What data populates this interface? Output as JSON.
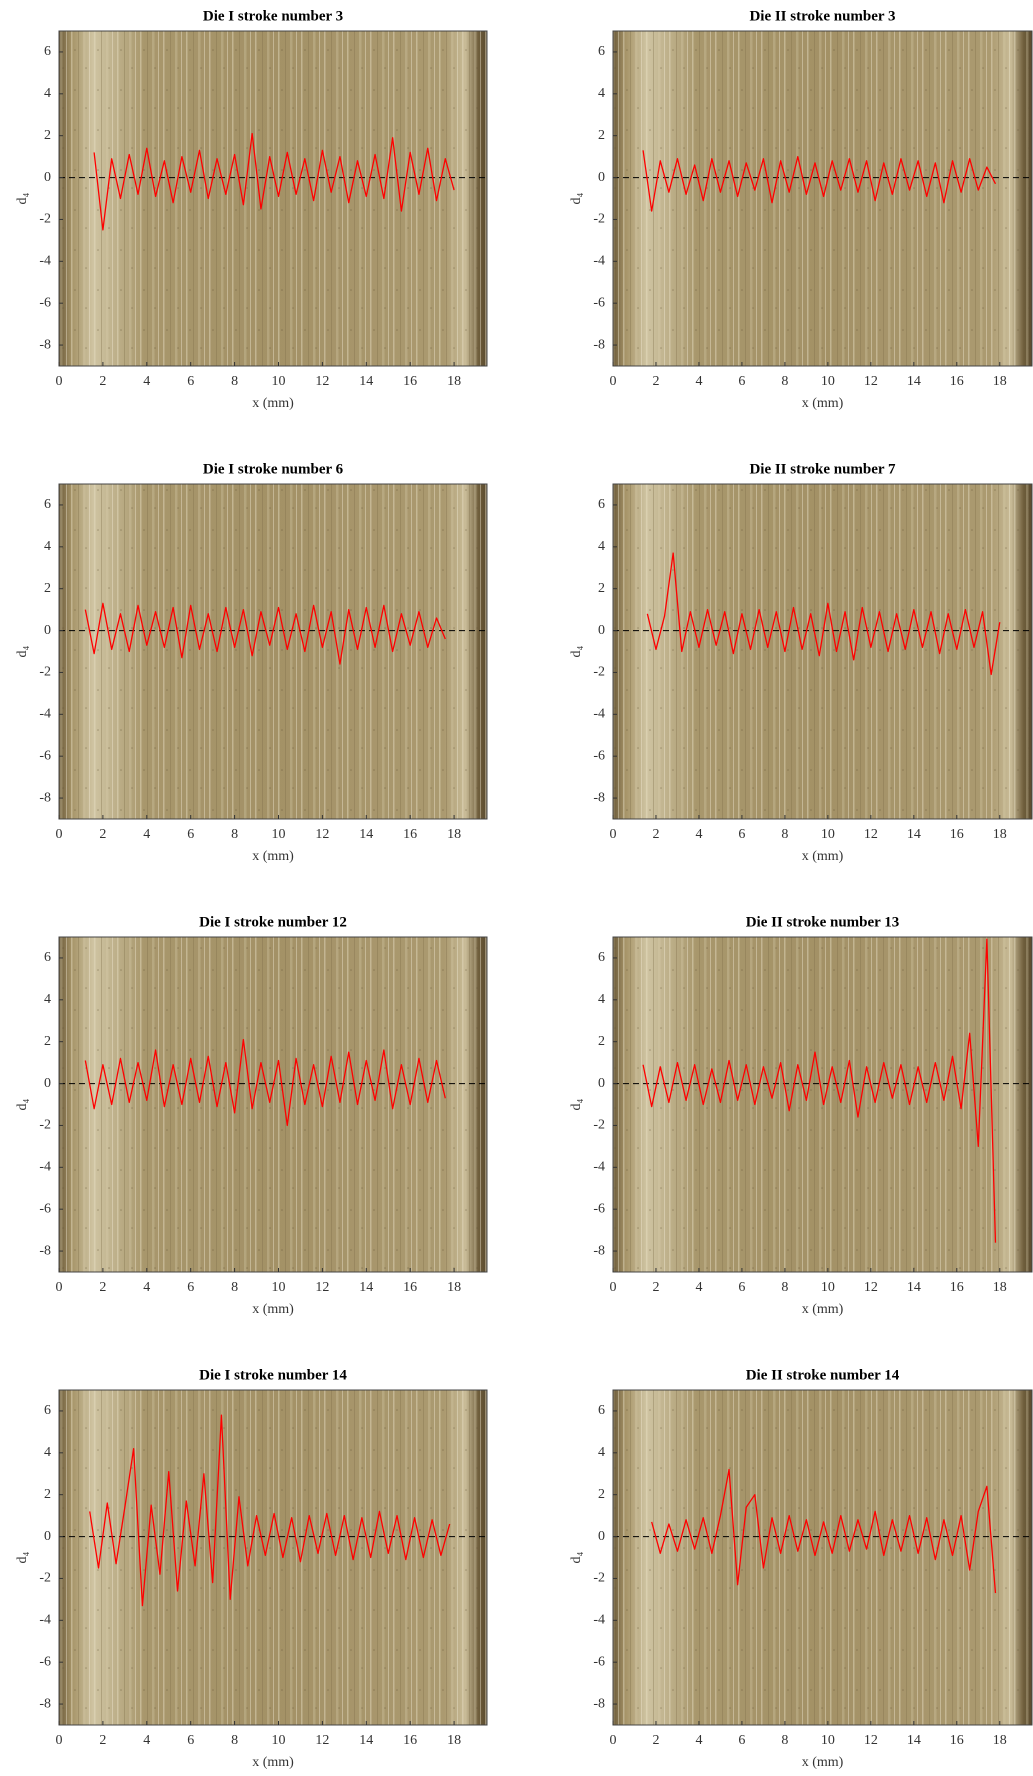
{
  "chart_data": [
    {
      "type": "line",
      "title": "Die I stroke number 3",
      "xlabel": "x (mm)",
      "ylabel": "d₄",
      "xlim": [
        0,
        19.5
      ],
      "ylim": [
        -9,
        7
      ],
      "xticks": [
        0,
        2,
        4,
        6,
        8,
        10,
        12,
        14,
        16,
        18
      ],
      "yticks": [
        -8,
        -6,
        -4,
        -2,
        0,
        2,
        4,
        6
      ],
      "grid": false,
      "hline": 0,
      "color": "#ff0000",
      "x": [
        1.6,
        2,
        2.4,
        2.8,
        3.2,
        3.6,
        4,
        4.4,
        4.8,
        5.2,
        5.6,
        6,
        6.4,
        6.8,
        7.2,
        7.6,
        8,
        8.4,
        8.8,
        9.2,
        9.6,
        10,
        10.4,
        10.8,
        11.2,
        11.6,
        12,
        12.4,
        12.8,
        13.2,
        13.6,
        14,
        14.4,
        14.8,
        15.2,
        15.6,
        16,
        16.4,
        16.8,
        17.2,
        17.6,
        18
      ],
      "values": [
        1.2,
        -2.5,
        0.9,
        -1.0,
        1.1,
        -0.8,
        1.4,
        -0.9,
        0.8,
        -1.2,
        1.0,
        -0.7,
        1.3,
        -1.0,
        0.9,
        -0.8,
        1.1,
        -1.3,
        2.1,
        -1.5,
        1.0,
        -0.9,
        1.2,
        -0.8,
        0.9,
        -1.1,
        1.3,
        -0.7,
        1.0,
        -1.2,
        0.8,
        -0.9,
        1.1,
        -1.0,
        1.9,
        -1.6,
        1.2,
        -0.8,
        1.4,
        -1.1,
        0.9,
        -0.6
      ]
    },
    {
      "type": "line",
      "title": "Die II stroke number 3",
      "xlabel": "x (mm)",
      "ylabel": "d₄",
      "xlim": [
        0,
        19.5
      ],
      "ylim": [
        -9,
        7
      ],
      "xticks": [
        0,
        2,
        4,
        6,
        8,
        10,
        12,
        14,
        16,
        18
      ],
      "yticks": [
        -8,
        -6,
        -4,
        -2,
        0,
        2,
        4,
        6
      ],
      "grid": false,
      "hline": 0,
      "color": "#ff0000",
      "x": [
        1.4,
        1.8,
        2.2,
        2.6,
        3,
        3.4,
        3.8,
        4.2,
        4.6,
        5,
        5.4,
        5.8,
        6.2,
        6.6,
        7,
        7.4,
        7.8,
        8.2,
        8.6,
        9,
        9.4,
        9.8,
        10.2,
        10.6,
        11,
        11.4,
        11.8,
        12.2,
        12.6,
        13,
        13.4,
        13.8,
        14.2,
        14.6,
        15,
        15.4,
        15.8,
        16.2,
        16.6,
        17,
        17.4,
        17.8
      ],
      "values": [
        1.3,
        -1.6,
        0.8,
        -0.7,
        0.9,
        -0.8,
        0.6,
        -1.1,
        0.9,
        -0.7,
        0.8,
        -0.9,
        0.7,
        -0.6,
        0.9,
        -1.2,
        0.8,
        -0.7,
        1.0,
        -0.8,
        0.7,
        -0.9,
        0.8,
        -0.6,
        0.9,
        -0.7,
        0.8,
        -1.1,
        0.7,
        -0.8,
        0.9,
        -0.6,
        0.8,
        -0.9,
        0.7,
        -1.2,
        0.8,
        -0.7,
        0.9,
        -0.6,
        0.5,
        -0.3
      ]
    },
    {
      "type": "line",
      "title": "Die I stroke number 6",
      "xlabel": "x (mm)",
      "ylabel": "d₄",
      "xlim": [
        0,
        19.5
      ],
      "ylim": [
        -9,
        7
      ],
      "xticks": [
        0,
        2,
        4,
        6,
        8,
        10,
        12,
        14,
        16,
        18
      ],
      "yticks": [
        -8,
        -6,
        -4,
        -2,
        0,
        2,
        4,
        6
      ],
      "grid": false,
      "hline": 0,
      "color": "#ff0000",
      "x": [
        1.2,
        1.6,
        2,
        2.4,
        2.8,
        3.2,
        3.6,
        4,
        4.4,
        4.8,
        5.2,
        5.6,
        6,
        6.4,
        6.8,
        7.2,
        7.6,
        8,
        8.4,
        8.8,
        9.2,
        9.6,
        10,
        10.4,
        10.8,
        11.2,
        11.6,
        12,
        12.4,
        12.8,
        13.2,
        13.6,
        14,
        14.4,
        14.8,
        15.2,
        15.6,
        16,
        16.4,
        16.8,
        17.2,
        17.6
      ],
      "values": [
        1.0,
        -1.1,
        1.3,
        -0.9,
        0.8,
        -1.0,
        1.2,
        -0.7,
        0.9,
        -0.8,
        1.1,
        -1.3,
        1.2,
        -0.9,
        0.8,
        -1.0,
        1.1,
        -0.8,
        1.0,
        -1.2,
        0.9,
        -0.7,
        1.1,
        -0.9,
        0.8,
        -1.0,
        1.2,
        -0.8,
        0.9,
        -1.6,
        1.0,
        -0.9,
        1.1,
        -0.8,
        1.2,
        -1.0,
        0.8,
        -0.7,
        0.9,
        -0.8,
        0.6,
        -0.4
      ]
    },
    {
      "type": "line",
      "title": "Die II stroke number 7",
      "xlabel": "x (mm)",
      "ylabel": "d₄",
      "xlim": [
        0,
        19.5
      ],
      "ylim": [
        -9,
        7
      ],
      "xticks": [
        0,
        2,
        4,
        6,
        8,
        10,
        12,
        14,
        16,
        18
      ],
      "yticks": [
        -8,
        -6,
        -4,
        -2,
        0,
        2,
        4,
        6
      ],
      "grid": false,
      "hline": 0,
      "color": "#ff0000",
      "x": [
        1.6,
        2,
        2.4,
        2.8,
        3.2,
        3.6,
        4,
        4.4,
        4.8,
        5.2,
        5.6,
        6,
        6.4,
        6.8,
        7.2,
        7.6,
        8,
        8.4,
        8.8,
        9.2,
        9.6,
        10,
        10.4,
        10.8,
        11.2,
        11.6,
        12,
        12.4,
        12.8,
        13.2,
        13.6,
        14,
        14.4,
        14.8,
        15.2,
        15.6,
        16,
        16.4,
        16.8,
        17.2,
        17.6,
        18
      ],
      "values": [
        0.8,
        -0.9,
        0.7,
        3.7,
        -1.0,
        0.9,
        -0.8,
        1.0,
        -0.7,
        0.9,
        -1.1,
        0.8,
        -0.9,
        1.0,
        -0.8,
        0.9,
        -1.0,
        1.1,
        -0.9,
        0.8,
        -1.2,
        1.3,
        -1.0,
        0.9,
        -1.4,
        1.1,
        -0.8,
        0.9,
        -1.0,
        0.8,
        -0.9,
        1.0,
        -0.8,
        0.9,
        -1.1,
        0.8,
        -0.9,
        1.0,
        -0.8,
        0.9,
        -2.1,
        0.4
      ]
    },
    {
      "type": "line",
      "title": "Die I stroke number 12",
      "xlabel": "x (mm)",
      "ylabel": "d₄",
      "xlim": [
        0,
        19.5
      ],
      "ylim": [
        -9,
        7
      ],
      "xticks": [
        0,
        2,
        4,
        6,
        8,
        10,
        12,
        14,
        16,
        18
      ],
      "yticks": [
        -8,
        -6,
        -4,
        -2,
        0,
        2,
        4,
        6
      ],
      "grid": false,
      "hline": 0,
      "color": "#ff0000",
      "x": [
        1.2,
        1.6,
        2,
        2.4,
        2.8,
        3.2,
        3.6,
        4,
        4.4,
        4.8,
        5.2,
        5.6,
        6,
        6.4,
        6.8,
        7.2,
        7.6,
        8,
        8.4,
        8.8,
        9.2,
        9.6,
        10,
        10.4,
        10.8,
        11.2,
        11.6,
        12,
        12.4,
        12.8,
        13.2,
        13.6,
        14,
        14.4,
        14.8,
        15.2,
        15.6,
        16,
        16.4,
        16.8,
        17.2,
        17.6
      ],
      "values": [
        1.1,
        -1.2,
        0.9,
        -1.0,
        1.2,
        -0.9,
        1.0,
        -0.8,
        1.6,
        -1.1,
        0.9,
        -1.0,
        1.2,
        -0.9,
        1.3,
        -1.1,
        1.0,
        -1.4,
        2.1,
        -1.2,
        1.0,
        -0.9,
        1.1,
        -2.0,
        1.2,
        -1.0,
        0.9,
        -1.1,
        1.3,
        -0.9,
        1.5,
        -1.0,
        1.1,
        -0.8,
        1.6,
        -1.2,
        0.9,
        -1.0,
        1.2,
        -0.9,
        1.1,
        -0.7
      ]
    },
    {
      "type": "line",
      "title": "Die II stroke number 13",
      "xlabel": "x (mm)",
      "ylabel": "d₄",
      "xlim": [
        0,
        19.5
      ],
      "ylim": [
        -9,
        7
      ],
      "xticks": [
        0,
        2,
        4,
        6,
        8,
        10,
        12,
        14,
        16,
        18
      ],
      "yticks": [
        -8,
        -6,
        -4,
        -2,
        0,
        2,
        4,
        6
      ],
      "grid": false,
      "hline": 0,
      "color": "#ff0000",
      "x": [
        1.4,
        1.8,
        2.2,
        2.6,
        3,
        3.4,
        3.8,
        4.2,
        4.6,
        5,
        5.4,
        5.8,
        6.2,
        6.6,
        7,
        7.4,
        7.8,
        8.2,
        8.6,
        9,
        9.4,
        9.8,
        10.2,
        10.6,
        11,
        11.4,
        11.8,
        12.2,
        12.6,
        13,
        13.4,
        13.8,
        14.2,
        14.6,
        15,
        15.4,
        15.8,
        16.2,
        16.6,
        17,
        17.4,
        17.8
      ],
      "values": [
        0.9,
        -1.1,
        0.8,
        -0.9,
        1.0,
        -0.8,
        0.9,
        -1.0,
        0.7,
        -0.9,
        1.1,
        -0.8,
        0.9,
        -1.0,
        0.8,
        -0.7,
        1.0,
        -1.3,
        0.9,
        -0.8,
        1.5,
        -1.0,
        0.8,
        -0.9,
        1.1,
        -1.6,
        0.8,
        -0.9,
        1.0,
        -0.7,
        0.9,
        -1.0,
        0.8,
        -0.9,
        1.0,
        -0.8,
        1.3,
        -1.2,
        2.4,
        -3.0,
        6.9,
        -7.6
      ]
    },
    {
      "type": "line",
      "title": "Die I stroke number 14",
      "xlabel": "x (mm)",
      "ylabel": "d₄",
      "xlim": [
        0,
        19.5
      ],
      "ylim": [
        -9,
        7
      ],
      "xticks": [
        0,
        2,
        4,
        6,
        8,
        10,
        12,
        14,
        16,
        18
      ],
      "yticks": [
        -8,
        -6,
        -4,
        -2,
        0,
        2,
        4,
        6
      ],
      "grid": false,
      "hline": 0,
      "color": "#ff0000",
      "x": [
        1.4,
        1.8,
        2.2,
        2.6,
        3,
        3.4,
        3.8,
        4.2,
        4.6,
        5,
        5.4,
        5.8,
        6.2,
        6.6,
        7,
        7.4,
        7.8,
        8.2,
        8.6,
        9,
        9.4,
        9.8,
        10.2,
        10.6,
        11,
        11.4,
        11.8,
        12.2,
        12.6,
        13,
        13.4,
        13.8,
        14.2,
        14.6,
        15,
        15.4,
        15.8,
        16.2,
        16.6,
        17,
        17.4,
        17.8
      ],
      "values": [
        1.2,
        -1.5,
        1.6,
        -1.3,
        1.4,
        4.2,
        -3.3,
        1.5,
        -1.8,
        3.1,
        -2.6,
        1.7,
        -1.4,
        3.0,
        -2.2,
        5.8,
        -3.0,
        1.9,
        -1.4,
        1.0,
        -0.9,
        1.1,
        -1.0,
        0.9,
        -1.2,
        1.0,
        -0.8,
        1.1,
        -0.9,
        1.0,
        -1.1,
        0.9,
        -1.0,
        1.2,
        -0.8,
        1.0,
        -1.1,
        0.9,
        -1.0,
        0.8,
        -0.9,
        0.6
      ]
    },
    {
      "type": "line",
      "title": "Die II stroke number 14",
      "xlabel": "x (mm)",
      "ylabel": "d₄",
      "xlim": [
        0,
        19.5
      ],
      "ylim": [
        -9,
        7
      ],
      "xticks": [
        0,
        2,
        4,
        6,
        8,
        10,
        12,
        14,
        16,
        18
      ],
      "yticks": [
        -8,
        -6,
        -4,
        -2,
        0,
        2,
        4,
        6
      ],
      "grid": false,
      "hline": 0,
      "color": "#ff0000",
      "x": [
        1.8,
        2.2,
        2.6,
        3,
        3.4,
        3.8,
        4.2,
        4.6,
        5,
        5.4,
        5.8,
        6.2,
        6.6,
        7,
        7.4,
        7.8,
        8.2,
        8.6,
        9,
        9.4,
        9.8,
        10.2,
        10.6,
        11,
        11.4,
        11.8,
        12.2,
        12.6,
        13,
        13.4,
        13.8,
        14.2,
        14.6,
        15,
        15.4,
        15.8,
        16.2,
        16.6,
        17,
        17.4,
        17.8
      ],
      "values": [
        0.7,
        -0.8,
        0.6,
        -0.7,
        0.8,
        -0.6,
        0.9,
        -0.8,
        1.0,
        3.2,
        -2.3,
        1.4,
        2.0,
        -1.5,
        0.9,
        -0.8,
        1.0,
        -0.7,
        0.8,
        -0.9,
        0.7,
        -0.8,
        1.0,
        -0.7,
        0.8,
        -0.6,
        1.2,
        -0.9,
        0.8,
        -0.7,
        1.0,
        -0.8,
        0.9,
        -1.1,
        0.8,
        -0.9,
        1.0,
        -1.6,
        1.2,
        2.4,
        -2.7
      ]
    }
  ]
}
